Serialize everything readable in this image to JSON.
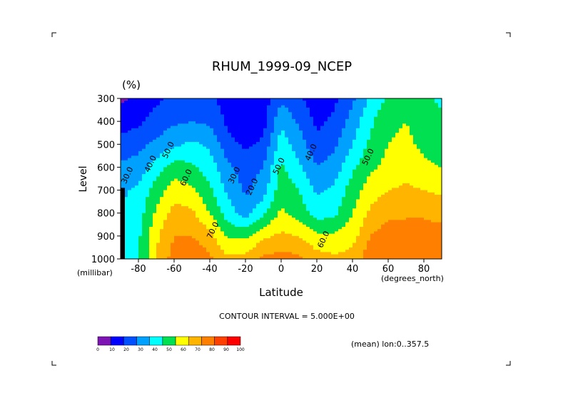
{
  "chart_data": {
    "type": "heatmap",
    "subtype": "filled-contour",
    "title": "RHUM_1999-09_NCEP",
    "units": "(%)",
    "xlabel": "Latitude",
    "x_units": "(degrees_north)",
    "ylabel": "Level",
    "y_units": "(millibar)",
    "xlim": [
      -90,
      90
    ],
    "ylim": [
      1000,
      300
    ],
    "x_ticks": [
      -80,
      -60,
      -40,
      -20,
      0,
      20,
      40,
      60,
      80
    ],
    "x_tick_labels": [
      "-80",
      "-60",
      "-40",
      "-20",
      "0",
      "20",
      "40",
      "60",
      "80"
    ],
    "y_ticks": [
      300,
      400,
      500,
      600,
      700,
      800,
      900,
      1000
    ],
    "y_tick_labels": [
      "300",
      "400",
      "500",
      "600",
      "700",
      "800",
      "900",
      "1000"
    ],
    "contour_interval_text": "CONTOUR INTERVAL = 5.000E+00",
    "annotation": "(mean) lon:0..357.5",
    "contour_labels": [
      "30.0",
      "40.0",
      "50.0",
      "60.0",
      "70.0",
      "30.0",
      "20.0",
      "50.0",
      "40.0",
      "60.0",
      "50.0"
    ],
    "colorbar": {
      "levels": [
        0,
        10,
        20,
        30,
        40,
        50,
        60,
        70,
        80,
        90,
        100
      ],
      "level_labels": [
        "0",
        "10",
        "20",
        "30",
        "40",
        "50",
        "60",
        "70",
        "80",
        "90",
        "100"
      ],
      "colors": [
        "#7f14b4",
        "#0000ff",
        "#0050ff",
        "#00a0ff",
        "#00ffff",
        "#00e050",
        "#ffff00",
        "#ffb400",
        "#ff8000",
        "#ff4000",
        "#ff0000"
      ]
    },
    "latitudes": [
      -90,
      -80,
      -70,
      -60,
      -50,
      -40,
      -30,
      -20,
      -10,
      0,
      10,
      20,
      30,
      40,
      50,
      60,
      70,
      80,
      90
    ],
    "levels_mb": [
      300,
      400,
      500,
      600,
      700,
      800,
      900,
      1000
    ],
    "rh_values": [
      [
        8,
        12,
        18,
        22,
        25,
        22,
        15,
        10,
        15,
        28,
        22,
        14,
        18,
        28,
        42,
        52,
        55,
        52,
        48
      ],
      [
        15,
        18,
        24,
        28,
        30,
        28,
        18,
        10,
        16,
        38,
        28,
        18,
        22,
        34,
        48,
        58,
        60,
        56,
        52
      ],
      [
        24,
        27,
        32,
        38,
        42,
        38,
        24,
        18,
        22,
        45,
        35,
        22,
        28,
        40,
        52,
        60,
        62,
        58,
        55
      ],
      [
        32,
        34,
        45,
        55,
        52,
        45,
        32,
        25,
        30,
        52,
        42,
        30,
        35,
        48,
        58,
        63,
        65,
        62,
        60
      ],
      [
        38,
        42,
        55,
        65,
        62,
        52,
        38,
        28,
        35,
        56,
        50,
        38,
        42,
        55,
        65,
        70,
        72,
        70,
        68
      ],
      [
        40,
        45,
        62,
        74,
        72,
        60,
        45,
        35,
        48,
        62,
        56,
        45,
        48,
        60,
        72,
        78,
        78,
        78,
        76
      ],
      [
        40,
        48,
        68,
        80,
        80,
        74,
        58,
        58,
        68,
        72,
        70,
        62,
        62,
        66,
        80,
        85,
        86,
        86,
        85
      ],
      [
        40,
        48,
        70,
        85,
        88,
        82,
        72,
        74,
        82,
        84,
        82,
        75,
        72,
        74,
        86,
        88,
        88,
        88,
        86
      ]
    ]
  }
}
